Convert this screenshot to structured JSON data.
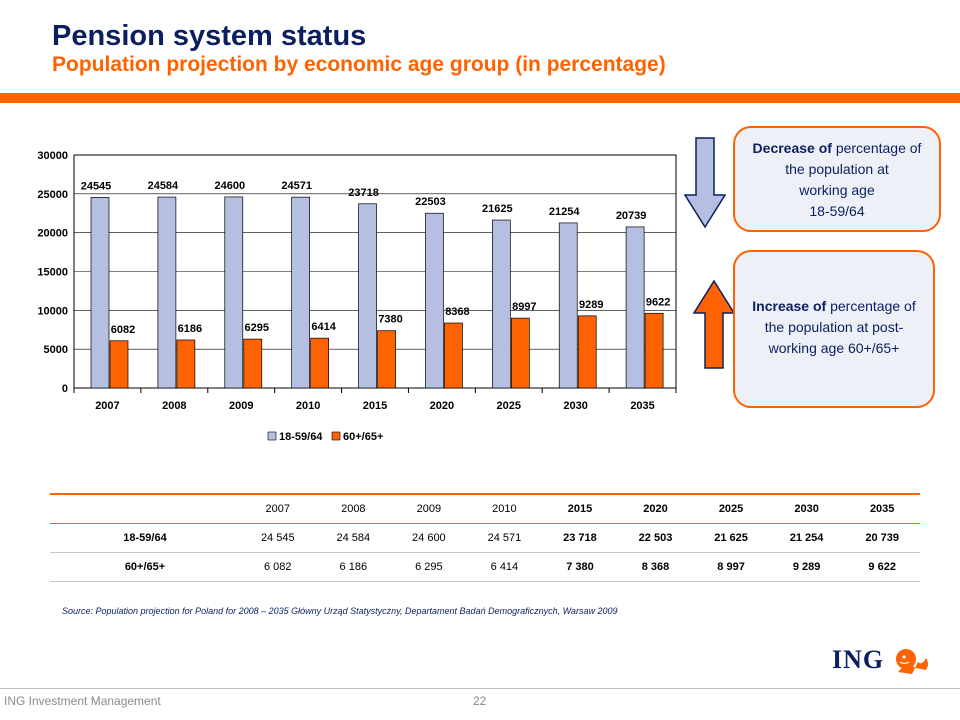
{
  "header": {
    "title": "Pension system status",
    "subtitle": "Population projection by economic age group (in percentage)"
  },
  "colors": {
    "navy": "#0b1f60",
    "orange": "#ff6200",
    "bar_working": "#b4bfe2",
    "bar_post": "#ff6200"
  },
  "chart_data": {
    "type": "bar",
    "categories": [
      "2007",
      "2008",
      "2009",
      "2010",
      "2015",
      "2020",
      "2025",
      "2030",
      "2035"
    ],
    "series": [
      {
        "name": "18-59/64",
        "values": [
          24545,
          24584,
          24600,
          24571,
          23718,
          22503,
          21625,
          21254,
          20739
        ],
        "color": "#b4bfe2"
      },
      {
        "name": "60+/65+",
        "values": [
          6082,
          6186,
          6295,
          6414,
          7380,
          8368,
          8997,
          9289,
          9622
        ],
        "color": "#ff6200"
      }
    ],
    "ylim": [
      0,
      30000
    ],
    "yticks": [
      0,
      5000,
      10000,
      15000,
      20000,
      25000,
      30000
    ],
    "grid": true,
    "legend": "bottom-center"
  },
  "callouts": {
    "decrease": {
      "bold": "Decrease of",
      "line1": " percentage of",
      "line2": "the population at",
      "line3": "working age",
      "line4": "18-59/64",
      "arrow_icon": "arrow-down-icon"
    },
    "increase": {
      "bold": "Increase of",
      "line1": " percentage of",
      "line2": "the population at post-",
      "line3": "working age 60+/65+",
      "arrow_icon": "arrow-up-icon"
    }
  },
  "table": {
    "headers": [
      "",
      "2007",
      "2008",
      "2009",
      "2010",
      "2015",
      "2020",
      "2025",
      "2030",
      "2035"
    ],
    "rows": [
      {
        "label": "18-59/64",
        "cells": [
          "24 545",
          "24 584",
          "24 600",
          "24 571",
          "23 718",
          "22 503",
          "21 625",
          "21 254",
          "20 739"
        ]
      },
      {
        "label": "60+/65+",
        "cells": [
          "6 082",
          "6 186",
          "6 295",
          "6 414",
          "7 380",
          "8 368",
          "8 997",
          "9 289",
          "9 622"
        ]
      }
    ]
  },
  "source": "Source: Population projection for Poland for 2008 – 2035 Główny Urząd Statystyczny, Departament Badań Demograficznych, Warsaw 2009",
  "footer": {
    "company": "ING Investment Management",
    "page_number": "22",
    "logo_text": "ING",
    "logo_icon": "lion-icon"
  }
}
